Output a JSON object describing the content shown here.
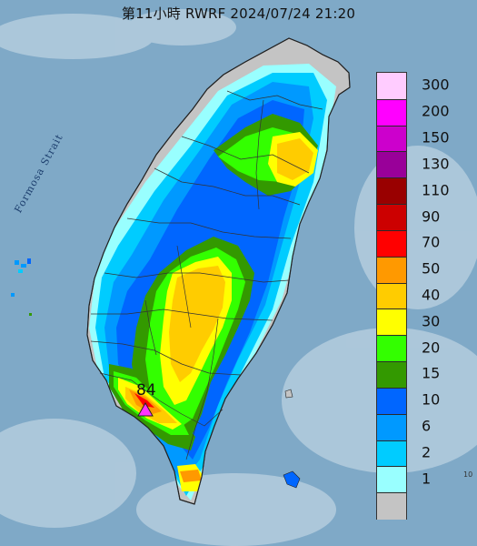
{
  "title": "第11小時  RWRF 2024/07/24 21:20",
  "map": {
    "strait_label": "Formosa Strait",
    "sea_color": "#7fa9c7",
    "land_outside_color": "#c9d3dc",
    "no_rain_color": "#c4c4c4"
  },
  "peak": {
    "value": "84",
    "marker_color": "#ff33ff"
  },
  "legend": {
    "items": [
      {
        "label": "300",
        "color": "#ffccff"
      },
      {
        "label": "200",
        "color": "#ff00ff"
      },
      {
        "label": "150",
        "color": "#cc00cc"
      },
      {
        "label": "130",
        "color": "#990099"
      },
      {
        "label": "110",
        "color": "#990000"
      },
      {
        "label": "90",
        "color": "#cc0000"
      },
      {
        "label": "70",
        "color": "#ff0000"
      },
      {
        "label": "50",
        "color": "#ff9900"
      },
      {
        "label": "40",
        "color": "#ffcc00"
      },
      {
        "label": "30",
        "color": "#ffff00"
      },
      {
        "label": "20",
        "color": "#33ff00"
      },
      {
        "label": "15",
        "color": "#339900"
      },
      {
        "label": "10",
        "color": "#0066ff"
      },
      {
        "label": "6",
        "color": "#0099ff"
      },
      {
        "label": "2",
        "color": "#00ccff"
      },
      {
        "label": "1",
        "color": "#99ffff"
      },
      {
        "label": "",
        "color": "#c4c4c4"
      }
    ]
  },
  "corner_text": "10"
}
